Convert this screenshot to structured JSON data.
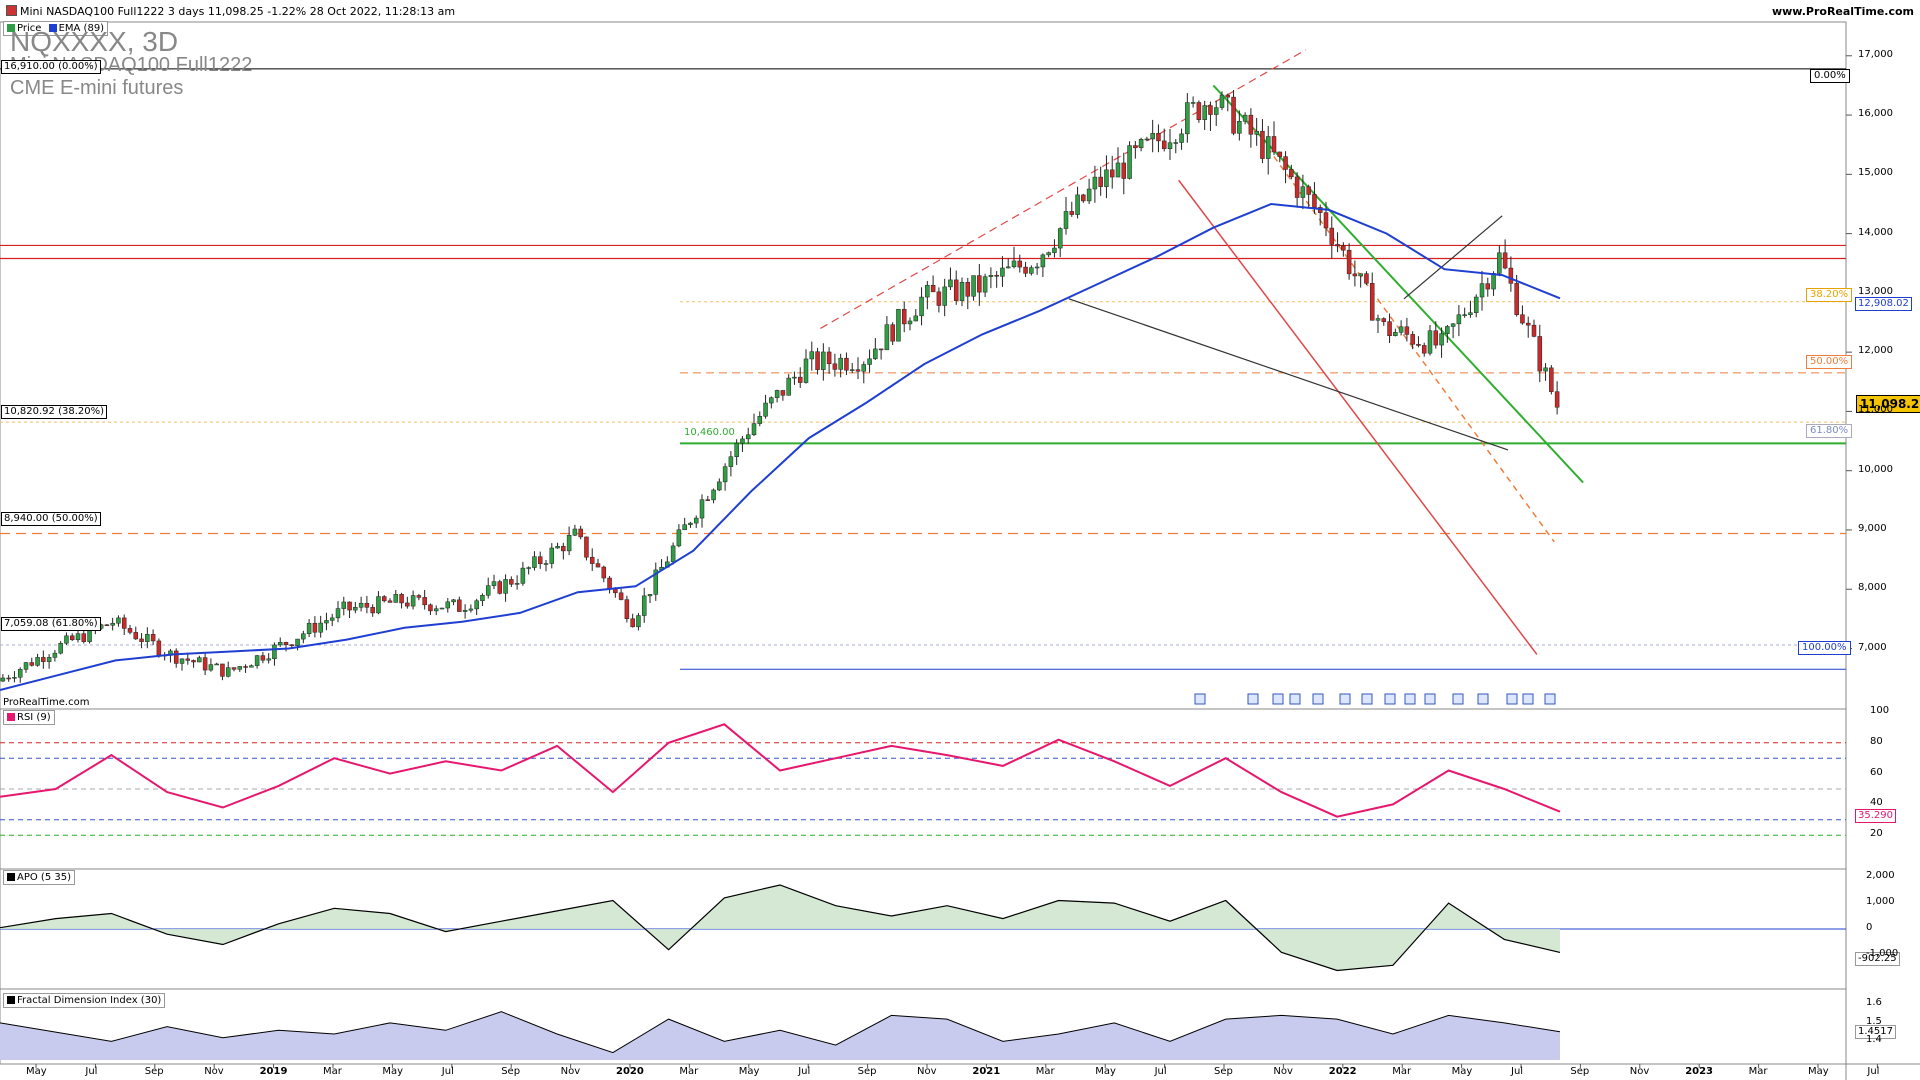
{
  "header": {
    "title": "Mini NASDAQ100 Full1222 3 days 11,098.25 -1.22% 28 Oct 2022, 11:28:13 am",
    "site": "www.ProRealTime.com"
  },
  "legend_main": [
    {
      "label": "Price",
      "color": "#cc3333"
    },
    {
      "label": "EMA (89)",
      "color": "#1f3fd1"
    }
  ],
  "watermark": {
    "symbol": "NQXXXX, 3D",
    "name": "Mini NASDAQ100 Full1222",
    "exchange": "CME E-mini futures"
  },
  "footer_brand": "ProRealTime.com",
  "fib_labels": {
    "left_0": "16,910.00 (0.00%)",
    "left_382": "10,820.92 (38.20%)",
    "left_50": "8,940.00 (50.00%)",
    "left_618": "7,059.08 (61.80%)",
    "right_0": "0.00%",
    "right_382": "38.20%",
    "right_50": "50.00%",
    "right_618": "61.80%",
    "right_100": "100.00%"
  },
  "support_label": "10,460.00",
  "last_price": "11,098.25",
  "ema_value": "12,908.02",
  "rsi": {
    "label": "RSI (9)",
    "value": "35.290",
    "ticks": [
      "100",
      "80",
      "60",
      "40",
      "20"
    ]
  },
  "apo": {
    "label": "APO (5 35)",
    "value": "-902.25",
    "ticks": [
      "2,000",
      "1,000",
      "0",
      "-1,000"
    ]
  },
  "fdi": {
    "label": "Fractal Dimension Index (30)",
    "value": "1.4517",
    "ticks": [
      "1.6",
      "1.5",
      "1.4"
    ]
  },
  "colors": {
    "up_candle": "#2f9e44",
    "down_candle": "#c92a2a",
    "ema": "#1f3fd1",
    "rsi": "#e6176e",
    "green_line": "#2fae2f",
    "red_line": "#e04848",
    "orange": "#f07d3c"
  },
  "chart_data": [
    {
      "type": "candlestick",
      "title": "NQXXXX, 3D",
      "x": [
        "2018-05",
        "2018-07",
        "2018-09",
        "2018-11",
        "2019-01",
        "2019-03",
        "2019-05",
        "2019-07",
        "2019-09",
        "2019-11",
        "2020-01",
        "2020-03",
        "2020-05",
        "2020-07",
        "2020-09",
        "2020-11",
        "2021-01",
        "2021-03",
        "2021-05",
        "2021-07",
        "2021-09",
        "2021-11",
        "2022-01",
        "2022-03",
        "2022-05",
        "2022-07",
        "2022-09",
        "2022-10"
      ],
      "series": [
        {
          "name": "Price",
          "values": [
            6450,
            7000,
            7450,
            6900,
            6600,
            7100,
            7650,
            7800,
            7700,
            8200,
            8900,
            7500,
            9200,
            10700,
            11800,
            11900,
            12900,
            13100,
            13600,
            14800,
            15500,
            16300,
            15400,
            14200,
            12400,
            12100,
            13600,
            11100
          ]
        },
        {
          "name": "EMA (89)",
          "values": [
            6300,
            6550,
            6800,
            6900,
            6950,
            7000,
            7150,
            7350,
            7450,
            7600,
            7950,
            8050,
            8650,
            9650,
            10550,
            11150,
            11800,
            12300,
            12700,
            13150,
            13600,
            14100,
            14500,
            14400,
            14000,
            13400,
            13300,
            12908
          ]
        }
      ],
      "x_tick_labels": [
        "May",
        "Jul",
        "Sep",
        "Nov",
        "2019",
        "Mar",
        "May",
        "Jul",
        "Sep",
        "Nov",
        "2020",
        "Mar",
        "May",
        "Jul",
        "Sep",
        "Nov",
        "2021",
        "Mar",
        "May",
        "Jul",
        "Sep",
        "Nov",
        "2022",
        "Mar",
        "May",
        "Jul",
        "Sep",
        "Nov",
        "2023",
        "Mar",
        "May",
        "Jul"
      ],
      "y_tick_labels": [
        "17,000",
        "16,000",
        "15,000",
        "14,000",
        "13,000",
        "12,000",
        "11,000",
        "10,000",
        "9,000",
        "8,000",
        "7,000"
      ],
      "ylim": [
        6300,
        17300
      ],
      "horizontal_levels": [
        16780,
        13800,
        13580,
        12850,
        11650,
        10820,
        10460,
        8940,
        7060,
        6650
      ],
      "last_value": 11098.25
    },
    {
      "type": "line",
      "title": "RSI (9)",
      "ylim": [
        0,
        100
      ],
      "levels": [
        80,
        70,
        50,
        30,
        20
      ],
      "values": [
        45,
        50,
        72,
        48,
        38,
        52,
        70,
        60,
        68,
        62,
        78,
        48,
        80,
        92,
        62,
        70,
        78,
        72,
        65,
        82,
        68,
        52,
        70,
        48,
        32,
        40,
        62,
        50,
        35.29
      ],
      "last_value": 35.29
    },
    {
      "type": "area",
      "title": "APO (5 35)",
      "ylim": [
        -2200,
        2200
      ],
      "values": [
        50,
        400,
        600,
        -200,
        -600,
        200,
        800,
        600,
        -100,
        300,
        700,
        1100,
        -800,
        1200,
        1700,
        900,
        500,
        900,
        400,
        1100,
        1000,
        300,
        1100,
        -900,
        -1600,
        -1400,
        1000,
        -400,
        -902.25
      ],
      "last_value": -902.25
    },
    {
      "type": "area",
      "title": "Fractal Dimension Index (30)",
      "ylim": [
        1.3,
        1.65
      ],
      "values": [
        1.5,
        1.45,
        1.4,
        1.48,
        1.42,
        1.46,
        1.44,
        1.5,
        1.46,
        1.56,
        1.44,
        1.34,
        1.52,
        1.4,
        1.46,
        1.38,
        1.54,
        1.52,
        1.4,
        1.44,
        1.5,
        1.4,
        1.52,
        1.54,
        1.52,
        1.44,
        1.54,
        1.5,
        1.4517
      ],
      "last_value": 1.4517
    }
  ]
}
